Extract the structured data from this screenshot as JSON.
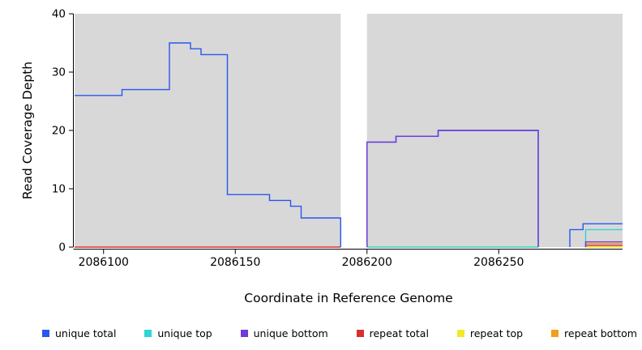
{
  "chart_data": {
    "type": "line",
    "subtype": "step-coverage-plot",
    "title": "",
    "xlabel": "Coordinate in Reference Genome",
    "ylabel": "Read Coverage Depth",
    "xlim": [
      2086089,
      2086297
    ],
    "ylim": [
      0,
      40
    ],
    "x_ticks": [
      2086100,
      2086150,
      2086200,
      2086250
    ],
    "y_ticks": [
      0,
      10,
      20,
      30,
      40
    ],
    "grid": false,
    "legend_position": "bottom",
    "panel_color": "#d8d8d8",
    "gap_regions": [
      [
        2086190,
        2086200
      ]
    ],
    "panels": [
      [
        2086089,
        2086190
      ],
      [
        2086200,
        2086297
      ]
    ],
    "series": [
      {
        "name": "repeat top",
        "color": "#f0e92a",
        "segments": [
          {
            "points": [
              [
                2086200,
                0
              ]
            ],
            "end": 2086265
          },
          {
            "points": [
              [
                2086283,
                0
              ]
            ],
            "end": 2086297
          }
        ]
      },
      {
        "name": "repeat total",
        "color": "#d83030",
        "segments": [
          {
            "points": [
              [
                2086089,
                0
              ]
            ],
            "end": 2086190
          },
          {
            "points": [
              [
                2086283,
                0
              ],
              [
                2086283,
                0.3
              ]
            ],
            "end": 2086297
          }
        ]
      },
      {
        "name": "repeat bottom",
        "color": "#f0a01e",
        "segments": [
          {
            "points": [
              [
                2086283,
                0
              ],
              [
                2086283,
                0.6
              ]
            ],
            "end": 2086297
          }
        ]
      },
      {
        "name": "unique top",
        "color": "#2fd4d8",
        "segments": [
          {
            "points": [
              [
                2086200,
                0
              ]
            ],
            "end": 2086265
          },
          {
            "points": [
              [
                2086283,
                0
              ],
              [
                2086283,
                3
              ]
            ],
            "end": 2086297
          }
        ]
      },
      {
        "name": "unique total",
        "color": "#2956f0",
        "segments": [
          {
            "points": [
              [
                2086089,
                26
              ],
              [
                2086107,
                27
              ],
              [
                2086125,
                35
              ],
              [
                2086133,
                34
              ],
              [
                2086137,
                33
              ],
              [
                2086147,
                9
              ],
              [
                2086163,
                8
              ],
              [
                2086171,
                7
              ],
              [
                2086175,
                5
              ],
              [
                2086190,
                0
              ]
            ]
          },
          {
            "points": [
              [
                2086200,
                0
              ],
              [
                2086200,
                18
              ],
              [
                2086211,
                19
              ],
              [
                2086227,
                20
              ],
              [
                2086265,
                0
              ]
            ]
          },
          {
            "points": [
              [
                2086277,
                0
              ],
              [
                2086277,
                3
              ],
              [
                2086282,
                4
              ]
            ],
            "end": 2086297
          }
        ]
      },
      {
        "name": "unique bottom",
        "color": "#6e3ad8",
        "segments": [
          {
            "points": [
              [
                2086200,
                0
              ],
              [
                2086200,
                18
              ],
              [
                2086211,
                19
              ],
              [
                2086227,
                20
              ],
              [
                2086265,
                0
              ]
            ]
          },
          {
            "points": [
              [
                2086283,
                0
              ],
              [
                2086283,
                0.9
              ]
            ],
            "end": 2086297
          }
        ]
      }
    ]
  },
  "legend": {
    "items": [
      {
        "label": "unique total",
        "color": "#2956f0"
      },
      {
        "label": "unique top",
        "color": "#2fd4d8"
      },
      {
        "label": "unique bottom",
        "color": "#6e3ad8"
      },
      {
        "label": "repeat total",
        "color": "#d83030"
      },
      {
        "label": "repeat top",
        "color": "#f0e92a"
      },
      {
        "label": "repeat bottom",
        "color": "#f0a01e"
      }
    ]
  }
}
